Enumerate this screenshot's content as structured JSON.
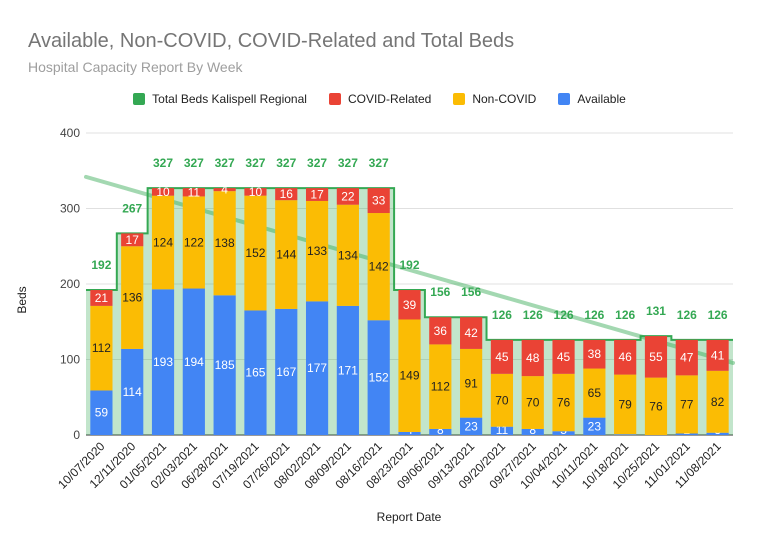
{
  "title": "Available, Non-COVID, COVID-Related and Total Beds",
  "subtitle": "Hospital Capacity Report By Week",
  "chart_data": {
    "type": "bar",
    "title": "Available, Non-COVID, COVID-Related and Total Beds",
    "subtitle": "Hospital Capacity Report By Week",
    "xlabel": "Report Date",
    "ylabel": "Beds",
    "ylim": [
      0,
      400
    ],
    "yticks": [
      0,
      100,
      200,
      300,
      400
    ],
    "grid": true,
    "legend_position": "top",
    "categories": [
      "10/07/2020",
      "12/11/2020",
      "01/05/2021",
      "02/03/2021",
      "06/28/2021",
      "07/19/2021",
      "07/26/2021",
      "08/02/2021",
      "08/09/2021",
      "08/16/2021",
      "08/23/2021",
      "09/06/2021",
      "09/13/2021",
      "09/20/2021",
      "09/27/2021",
      "10/04/2021",
      "10/11/2021",
      "10/18/2021",
      "10/25/2021",
      "11/01/2021",
      "11/08/2021"
    ],
    "series": [
      {
        "name": "Available",
        "color": "#4285f4",
        "stacked": true,
        "values": [
          59,
          114,
          193,
          194,
          185,
          165,
          167,
          177,
          171,
          152,
          4,
          8,
          23,
          11,
          8,
          5,
          23,
          1,
          0,
          2,
          3
        ]
      },
      {
        "name": "Non-COVID",
        "color": "#fbbc04",
        "stacked": true,
        "values": [
          112,
          136,
          124,
          122,
          138,
          152,
          144,
          133,
          134,
          142,
          149,
          112,
          91,
          70,
          70,
          76,
          65,
          79,
          76,
          77,
          82
        ]
      },
      {
        "name": "COVID-Related",
        "color": "#ea4335",
        "stacked": true,
        "values": [
          21,
          17,
          10,
          11,
          4,
          10,
          16,
          17,
          22,
          33,
          39,
          36,
          42,
          45,
          48,
          45,
          38,
          46,
          55,
          47,
          41
        ]
      },
      {
        "name": "Total Beds Kalispell Regional",
        "color": "#34a853",
        "type": "stepped-area",
        "values": [
          192,
          267,
          327,
          327,
          327,
          327,
          327,
          327,
          327,
          327,
          192,
          156,
          156,
          126,
          126,
          126,
          126,
          126,
          131,
          126,
          126
        ]
      }
    ],
    "trendline": {
      "series": "Total Beds Kalispell Regional",
      "color": "#34a853",
      "type": "linear"
    },
    "legend_order": [
      "Total Beds Kalispell Regional",
      "COVID-Related",
      "Non-COVID",
      "Available"
    ]
  }
}
